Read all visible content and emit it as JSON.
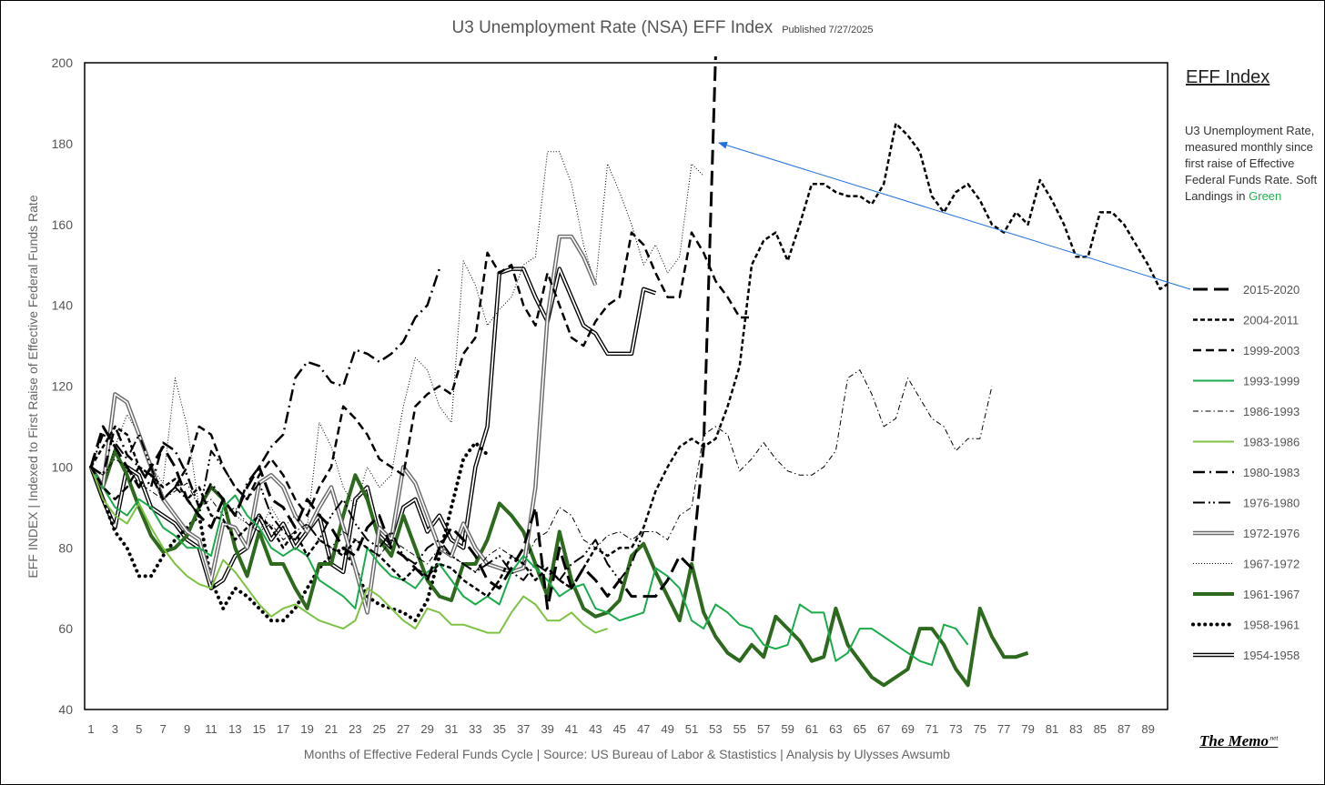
{
  "chart_data": {
    "type": "line",
    "title": "U3 Unemployment Rate (NSA) EFF Index",
    "subtitle": "Published 7/27/2025",
    "xlabel": "Months of Effective Federal Funds Cycle | Source: US Bureau of Labor & Stastistics | Analysis by Ulysses Awsumb",
    "ylabel": "EFF INDEX | Indexed to First Raise of Effective Federal Funds Rate",
    "ylim": [
      40,
      200
    ],
    "yticks": [
      "40",
      "60",
      "80",
      "100",
      "120",
      "140",
      "160",
      "180",
      "200"
    ],
    "xlim": [
      1,
      90
    ],
    "xticks": [
      "1",
      "3",
      "5",
      "7",
      "9",
      "11",
      "13",
      "15",
      "17",
      "19",
      "21",
      "23",
      "25",
      "27",
      "29",
      "31",
      "33",
      "35",
      "37",
      "39",
      "41",
      "43",
      "45",
      "47",
      "49",
      "51",
      "53",
      "55",
      "57",
      "59",
      "61",
      "63",
      "65",
      "67",
      "69",
      "71",
      "73",
      "75",
      "77",
      "79",
      "81",
      "83",
      "85",
      "87",
      "89"
    ],
    "grid": false,
    "legend_position": "right",
    "legend_title": "EFF Index",
    "legend_desc": "U3 Unemployment Rate, measured monthly since first raise of Effective Federal Funds Rate. Soft Landings in ",
    "legend_desc_green": "Green",
    "series": [
      {
        "name": "2015-2020",
        "style": "longdash",
        "color": "#000000",
        "values": [
          100,
          110,
          105,
          100,
          95,
          100,
          105,
          100,
          92,
          88,
          85,
          92,
          88,
          95,
          100,
          92,
          90,
          85,
          92,
          88,
          85,
          80,
          78,
          85,
          88,
          80,
          78,
          75,
          72,
          80,
          85,
          82,
          78,
          72,
          70,
          75,
          80,
          90,
          65,
          80,
          70,
          75,
          72,
          68,
          72,
          68,
          68,
          68,
          72,
          78,
          75,
          105,
          202
        ]
      },
      {
        "name": "2004-2011",
        "style": "shortdash",
        "color": "#000000",
        "values": [
          100,
          105,
          110,
          108,
          100,
          98,
          95,
          97,
          92,
          95,
          88,
          87,
          82,
          85,
          88,
          85,
          80,
          84,
          78,
          82,
          80,
          78,
          82,
          80,
          78,
          75,
          72,
          75,
          73,
          76,
          75,
          72,
          70,
          68,
          72,
          78,
          76,
          72,
          75,
          72,
          70,
          75,
          80,
          78,
          80,
          80,
          85,
          94,
          100,
          105,
          107,
          105,
          107,
          115,
          125,
          150,
          156,
          158,
          151,
          160,
          170,
          170,
          168,
          167,
          167,
          165,
          170,
          185,
          182,
          178,
          167,
          163,
          168,
          170,
          166,
          160,
          158,
          163,
          160,
          171,
          166,
          160,
          152,
          152,
          163,
          163,
          160,
          155,
          150,
          144,
          146
        ]
      },
      {
        "name": "1999-2003",
        "style": "dash",
        "color": "#000000",
        "values": [
          100,
          95,
          92,
          95,
          100,
          98,
          92,
          95,
          100,
          110,
          108,
          100,
          95,
          92,
          98,
          102,
          98,
          92,
          88,
          95,
          100,
          115,
          112,
          108,
          102,
          100,
          98,
          115,
          118,
          120,
          118,
          128,
          132,
          153,
          148,
          150,
          140,
          135,
          148,
          140,
          132,
          130,
          136,
          140,
          142,
          158,
          155,
          148,
          142,
          142,
          158,
          153,
          146,
          142,
          137,
          137
        ]
      },
      {
        "name": "1993-1999",
        "style": "solid",
        "color": "#1aab4b",
        "values": [
          100,
          95,
          90,
          88,
          92,
          90,
          85,
          83,
          80,
          80,
          78,
          90,
          93,
          88,
          85,
          80,
          78,
          80,
          78,
          72,
          70,
          68,
          65,
          80,
          76,
          73,
          72,
          70,
          74,
          76,
          72,
          68,
          66,
          68,
          66,
          74,
          78,
          75,
          72,
          68,
          70,
          71,
          65,
          64,
          62,
          63,
          64,
          75,
          73,
          70,
          62,
          60,
          66,
          64,
          61,
          60,
          56,
          55,
          56,
          66,
          64,
          64,
          52,
          54,
          60,
          60,
          58,
          56,
          54,
          52,
          51,
          61,
          60,
          56
        ]
      },
      {
        "name": "1986-1993",
        "style": "dashdotthin",
        "color": "#000000",
        "values": [
          100,
          98,
          102,
          100,
          96,
          94,
          92,
          94,
          96,
          90,
          92,
          88,
          90,
          86,
          84,
          86,
          82,
          84,
          86,
          82,
          80,
          84,
          82,
          80,
          78,
          82,
          80,
          78,
          76,
          80,
          78,
          76,
          74,
          78,
          80,
          78,
          76,
          82,
          84,
          90,
          88,
          82,
          80,
          83,
          84,
          82,
          84,
          84,
          82,
          88,
          90,
          108,
          110,
          108,
          99,
          102,
          106,
          102,
          99,
          98,
          98,
          100,
          104,
          122,
          124,
          118,
          110,
          112,
          122,
          117,
          112,
          110,
          104,
          107,
          107,
          120
        ]
      },
      {
        "name": "1983-1986",
        "style": "solid",
        "color": "#7dc242",
        "values": [
          100,
          92,
          88,
          86,
          91,
          85,
          80,
          76,
          73,
          71,
          70,
          77,
          74,
          70,
          66,
          63,
          65,
          66,
          64,
          62,
          61,
          60,
          62,
          70,
          68,
          65,
          62,
          60,
          65,
          64,
          61,
          61,
          60,
          59,
          59,
          64,
          68,
          66,
          62,
          62,
          64,
          61,
          59,
          60
        ]
      },
      {
        "name": "1980-1983",
        "style": "dashdot",
        "color": "#000000",
        "values": [
          100,
          98,
          110,
          103,
          100,
          95,
          106,
          104,
          98,
          90,
          96,
          92,
          88,
          96,
          100,
          105,
          108,
          122,
          126,
          125,
          121,
          120,
          129,
          128,
          126,
          128,
          131,
          137,
          140,
          149
        ]
      },
      {
        "name": "1976-1980",
        "style": "dashdotdot",
        "color": "#000000",
        "values": [
          100,
          108,
          106,
          102,
          108,
          100,
          92,
          95,
          92,
          88,
          104,
          100,
          95,
          92,
          96,
          88,
          84,
          82,
          86,
          82,
          88,
          92,
          86,
          82,
          80,
          84,
          78,
          76,
          80,
          82,
          78,
          76,
          74,
          76,
          78,
          74,
          72,
          76,
          74,
          72,
          76,
          78,
          82,
          76,
          72,
          76,
          84
        ]
      },
      {
        "name": "1972-1976",
        "style": "doublegray",
        "color": "#777777",
        "values": [
          100,
          95,
          118,
          116,
          108,
          100,
          92,
          88,
          84,
          82,
          72,
          86,
          85,
          80,
          96,
          98,
          95,
          88,
          84,
          90,
          95,
          85,
          75,
          64,
          85,
          82,
          100,
          96,
          88,
          80,
          78,
          86,
          80,
          76,
          75,
          74,
          75,
          95,
          137,
          157,
          157,
          152,
          145
        ]
      },
      {
        "name": "1967-1972",
        "style": "dotted",
        "color": "#000000",
        "values": [
          100,
          95,
          105,
          113,
          108,
          100,
          96,
          122,
          110,
          90,
          95,
          92,
          88,
          86,
          84,
          90,
          85,
          88,
          85,
          111,
          105,
          95,
          90,
          100,
          95,
          98,
          115,
          127,
          124,
          115,
          111,
          151,
          145,
          135,
          139,
          142,
          150,
          152,
          178,
          178,
          170,
          155,
          145,
          175,
          168,
          160,
          150,
          155,
          148,
          152,
          175,
          172
        ]
      },
      {
        "name": "1961-1967",
        "style": "thick",
        "color": "#2d6a1e",
        "values": [
          100,
          95,
          104,
          98,
          90,
          83,
          79,
          80,
          83,
          90,
          95,
          92,
          80,
          73,
          84,
          76,
          76,
          70,
          65,
          76,
          76,
          88,
          98,
          92,
          82,
          78,
          88,
          80,
          72,
          68,
          67,
          76,
          76,
          82,
          91,
          88,
          84,
          76,
          68,
          84,
          72,
          65,
          63,
          64,
          67,
          78,
          81,
          74,
          68,
          62,
          76,
          64,
          58,
          54,
          52,
          56,
          53,
          63,
          60,
          57,
          52,
          53,
          65,
          56,
          52,
          48,
          46,
          48,
          50,
          60,
          60,
          56,
          50,
          46,
          65,
          58,
          53,
          53,
          54
        ]
      },
      {
        "name": "1958-1961",
        "style": "bigdots",
        "color": "#000000",
        "values": [
          100,
          92,
          84,
          80,
          73,
          73,
          78,
          82,
          85,
          88,
          72,
          65,
          70,
          68,
          65,
          62,
          62,
          65,
          70,
          75,
          78,
          80,
          75,
          68,
          66,
          65,
          64,
          62,
          67,
          78,
          90,
          102,
          106,
          103
        ]
      },
      {
        "name": "1954-1958",
        "style": "doubleblack",
        "color": "#000000",
        "values": [
          100,
          92,
          85,
          100,
          98,
          90,
          88,
          86,
          82,
          80,
          70,
          72,
          78,
          80,
          88,
          82,
          86,
          80,
          84,
          88,
          76,
          74,
          92,
          95,
          83,
          80,
          90,
          92,
          84,
          88,
          82,
          80,
          100,
          110,
          148,
          149,
          149,
          142,
          136,
          149,
          142,
          135,
          133,
          128,
          128,
          128,
          144,
          143
        ]
      }
    ],
    "annotation_color": "#1f6fe0"
  },
  "footer": {
    "brand": "The Memo",
    "brand_suffix": ".net"
  }
}
